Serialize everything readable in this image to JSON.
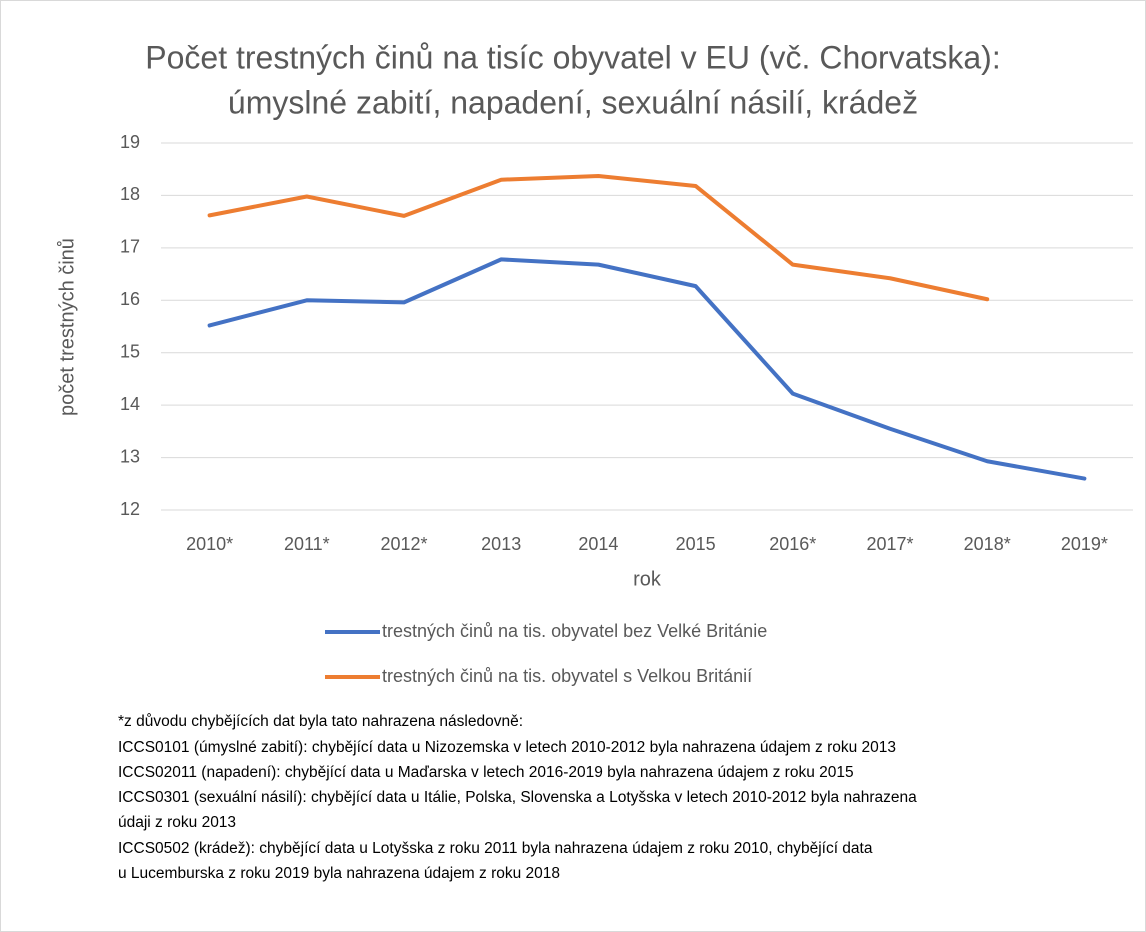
{
  "chart_data": {
    "type": "line",
    "title": [
      "Počet trestných činů na tisíc obyvatel v EU (vč. Chorvatska):",
      "úmyslné zabití, napadení, sexuální násilí, krádež"
    ],
    "x_label": "rok",
    "y_label": "počet trestných činů",
    "categories": [
      "2010*",
      "2011*",
      "2012*",
      "2013",
      "2014",
      "2015",
      "2016*",
      "2017*",
      "2018*",
      "2019*"
    ],
    "series": [
      {
        "name": "trestných činů na tis. obyvatel bez Velké Británie",
        "color": "#4472c4",
        "values": [
          15.52,
          16.0,
          15.96,
          16.78,
          16.68,
          16.27,
          14.22,
          13.55,
          12.93,
          12.6
        ]
      },
      {
        "name": "trestných činů na tis. obyvatel s Velkou Británií",
        "color": "#ed7d31",
        "values": [
          17.62,
          17.98,
          17.61,
          18.3,
          18.37,
          18.18,
          16.68,
          16.42,
          16.02,
          null
        ]
      }
    ],
    "ylim": [
      12,
      19
    ],
    "yticks": [
      12,
      13,
      14,
      15,
      16,
      17,
      18,
      19
    ],
    "grid": true,
    "legend": "bottom",
    "notes": [
      "*z důvodu chybějících dat byla tato nahrazena následovně:",
      "ICCS0101 (úmyslné zabití): chybějící data u Nizozemska v letech 2010-2012 byla nahrazena údajem z roku 2013",
      "ICCS02011 (napadení): chybějící data u Maďarska v letech 2016-2019 byla nahrazena údajem z roku 2015",
      "ICCS0301 (sexuální násilí): chybějící data u Itálie, Polska, Slovenska a Lotyšska v letech 2010-2012 byla nahrazena",
      "údaji z roku 2013",
      "ICCS0502 (krádež): chybějící data u Lotyšska z roku 2011 byla nahrazena údajem z roku 2010, chybějící data",
      "u Lucemburska z roku 2019 byla nahrazena údajem z roku 2018"
    ]
  }
}
